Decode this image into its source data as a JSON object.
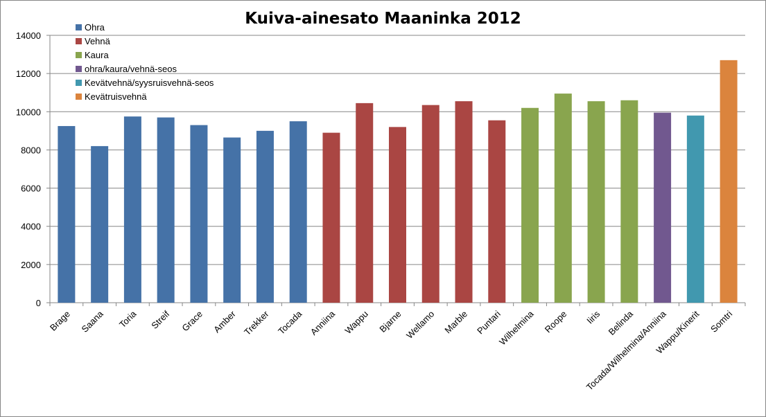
{
  "chart_data": {
    "type": "bar",
    "title": "Kuiva-ainesato Maaninka 2012",
    "xlabel": "",
    "ylabel": "",
    "ylim": [
      0,
      14000
    ],
    "yticks": [
      0,
      2000,
      4000,
      6000,
      8000,
      10000,
      12000,
      14000
    ],
    "grid": true,
    "legend_position": "top-left",
    "categories": [
      "Brage",
      "Saana",
      "Toria",
      "Streif",
      "Grace",
      "Amber",
      "Trekker",
      "Tocada",
      "Anniina",
      "Wappu",
      "Bjarne",
      "Wellamo",
      "Marble",
      "Puntari",
      "Wilhelmina",
      "Roope",
      "Iiris",
      "Belinda",
      "Tocada/Wilhelmina/Anniina",
      "Wappu/Kinerit",
      "Somtri"
    ],
    "values": [
      9250,
      8200,
      9750,
      9700,
      9300,
      8650,
      9000,
      9500,
      8900,
      10450,
      9200,
      10350,
      10550,
      9550,
      10200,
      10950,
      10550,
      10600,
      9950,
      9800,
      12700
    ],
    "groups": [
      0,
      0,
      0,
      0,
      0,
      0,
      0,
      0,
      1,
      1,
      1,
      1,
      1,
      1,
      2,
      2,
      2,
      2,
      3,
      4,
      5
    ],
    "legend": [
      {
        "name": "Ohra",
        "color": "#4572A7"
      },
      {
        "name": "Vehnä",
        "color": "#AA4643"
      },
      {
        "name": "Kaura",
        "color": "#89A54E"
      },
      {
        "name": "ohra/kaura/vehnä-seos",
        "color": "#71588F"
      },
      {
        "name": "Kevätvehnä/syysruisvehnä-seos",
        "color": "#4198AF"
      },
      {
        "name": "Kevätruisvehnä",
        "color": "#DB843D"
      }
    ]
  }
}
